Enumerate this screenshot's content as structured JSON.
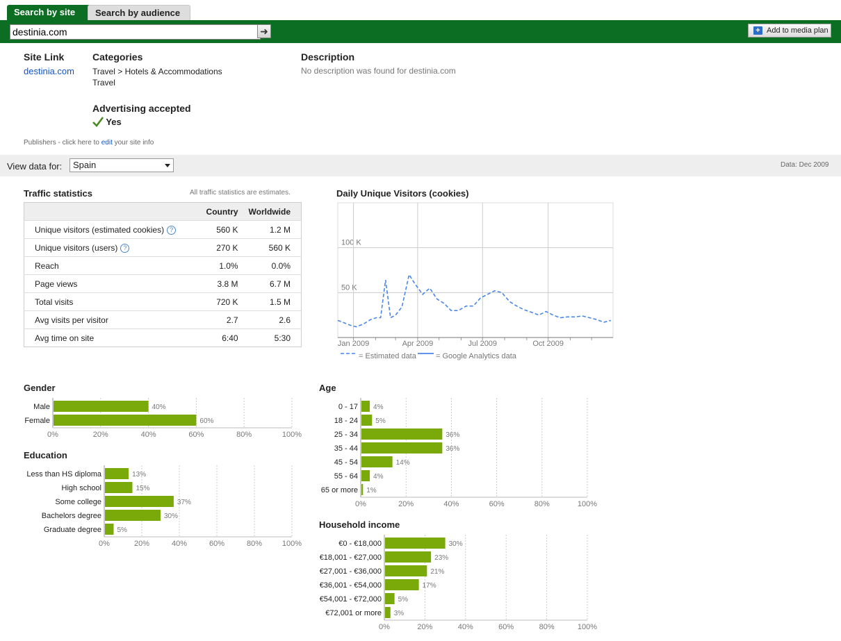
{
  "tabs": {
    "search_by_site": "Search by site",
    "search_by_audience": "Search by audience"
  },
  "search": {
    "value": "destinia.com",
    "go_label": "➜"
  },
  "add_to_media_plan": "Add to media plan",
  "site_link": {
    "heading": "Site Link",
    "value": "destinia.com"
  },
  "categories": {
    "heading": "Categories",
    "items": [
      "Travel > Hotels & Accommodations",
      "Travel"
    ]
  },
  "description": {
    "heading": "Description",
    "value": "No description was found for destinia.com"
  },
  "advertising": {
    "heading": "Advertising accepted",
    "value": "Yes"
  },
  "publishers_note": {
    "prefix": "Publishers - click here to ",
    "link": "edit",
    "suffix": " your site info"
  },
  "view_data": {
    "label": "View data for:",
    "selected": "Spain",
    "data_date": "Data: Dec 2009"
  },
  "traffic": {
    "heading": "Traffic statistics",
    "note": "All traffic statistics are estimates.",
    "columns": [
      "Country",
      "Worldwide"
    ],
    "rows": [
      {
        "label": "Unique visitors (estimated cookies)",
        "country": "560 K",
        "worldwide": "1.2 M",
        "help": true
      },
      {
        "label": "Unique visitors (users)",
        "country": "270 K",
        "worldwide": "560 K",
        "help": true
      },
      {
        "label": "Reach",
        "country": "1.0%",
        "worldwide": "0.0%",
        "help": false
      },
      {
        "label": "Page views",
        "country": "3.8 M",
        "worldwide": "6.7 M",
        "help": false
      },
      {
        "label": "Total visits",
        "country": "720 K",
        "worldwide": "1.5 M",
        "help": false
      },
      {
        "label": "Avg visits per visitor",
        "country": "2.7",
        "worldwide": "2.6",
        "help": false
      },
      {
        "label": "Avg time on site",
        "country": "6:40",
        "worldwide": "5:30",
        "help": false
      }
    ]
  },
  "colors": {
    "brand_green": "#0b6e22",
    "bar_green": "#7aaa0a",
    "line_blue": "#4a86e8",
    "link_blue": "#1155cc"
  },
  "chart_data": [
    {
      "type": "line",
      "title": "Daily Unique Visitors (cookies)",
      "y_ticks": [
        "50 K",
        "100 K"
      ],
      "ylim": [
        0,
        150000
      ],
      "x_ticks": [
        "Jan 2009",
        "Apr 2009",
        "Jul 2009",
        "Oct 2009"
      ],
      "legend": [
        "= Estimated data",
        "= Google Analytics data"
      ],
      "series": [
        {
          "name": "= Estimated data",
          "dashed": true,
          "x": [
            "2008-12-10",
            "2008-12-20",
            "2008-12-30",
            "2009-01-05",
            "2009-01-15",
            "2009-01-25",
            "2009-02-02",
            "2009-02-08",
            "2009-02-15",
            "2009-02-22",
            "2009-03-01",
            "2009-03-10",
            "2009-03-20",
            "2009-03-28",
            "2009-04-08",
            "2009-04-18",
            "2009-04-28",
            "2009-05-08",
            "2009-05-18",
            "2009-05-28",
            "2009-06-08",
            "2009-06-18",
            "2009-06-28",
            "2009-07-08",
            "2009-07-18",
            "2009-07-28",
            "2009-08-08",
            "2009-08-18",
            "2009-08-28",
            "2009-09-08",
            "2009-09-18",
            "2009-09-28",
            "2009-10-08",
            "2009-10-18",
            "2009-10-28",
            "2009-11-08",
            "2009-11-18",
            "2009-11-28",
            "2009-12-08",
            "2009-12-18",
            "2009-12-28"
          ],
          "y": [
            19000,
            16000,
            13000,
            12000,
            15000,
            20000,
            22000,
            22000,
            64000,
            22000,
            25000,
            34000,
            70000,
            60000,
            48000,
            55000,
            43000,
            38000,
            30000,
            30000,
            35000,
            35000,
            44000,
            48000,
            52000,
            50000,
            40000,
            35000,
            31000,
            28000,
            25000,
            29000,
            25000,
            22000,
            23000,
            23000,
            24000,
            22000,
            20000,
            17000,
            19000
          ]
        }
      ]
    },
    {
      "type": "bar",
      "title": "Gender",
      "categories": [
        "Male",
        "Female"
      ],
      "values": [
        40,
        60
      ],
      "xlim": [
        0,
        100
      ],
      "ticks": [
        "0%",
        "20%",
        "40%",
        "60%",
        "80%",
        "100%"
      ]
    },
    {
      "type": "bar",
      "title": "Education",
      "categories": [
        "Less than HS diploma",
        "High school",
        "Some college",
        "Bachelors degree",
        "Graduate degree"
      ],
      "values": [
        13,
        15,
        37,
        30,
        5
      ],
      "xlim": [
        0,
        100
      ],
      "ticks": [
        "0%",
        "20%",
        "40%",
        "60%",
        "80%",
        "100%"
      ]
    },
    {
      "type": "bar",
      "title": "Age",
      "categories": [
        "0 - 17",
        "18 - 24",
        "25 - 34",
        "35 - 44",
        "45 - 54",
        "55 - 64",
        "65 or more"
      ],
      "values": [
        4,
        5,
        36,
        36,
        14,
        4,
        1
      ],
      "xlim": [
        0,
        100
      ],
      "ticks": [
        "0%",
        "20%",
        "40%",
        "60%",
        "80%",
        "100%"
      ]
    },
    {
      "type": "bar",
      "title": "Household income",
      "categories": [
        "€0 - €18,000",
        "€18,001 - €27,000",
        "€27,001 - €36,000",
        "€36,001 - €54,000",
        "€54,001 - €72,000",
        "€72,001 or more"
      ],
      "values": [
        30,
        23,
        21,
        17,
        5,
        3
      ],
      "xlim": [
        0,
        100
      ],
      "ticks": [
        "0%",
        "20%",
        "40%",
        "60%",
        "80%",
        "100%"
      ]
    }
  ]
}
